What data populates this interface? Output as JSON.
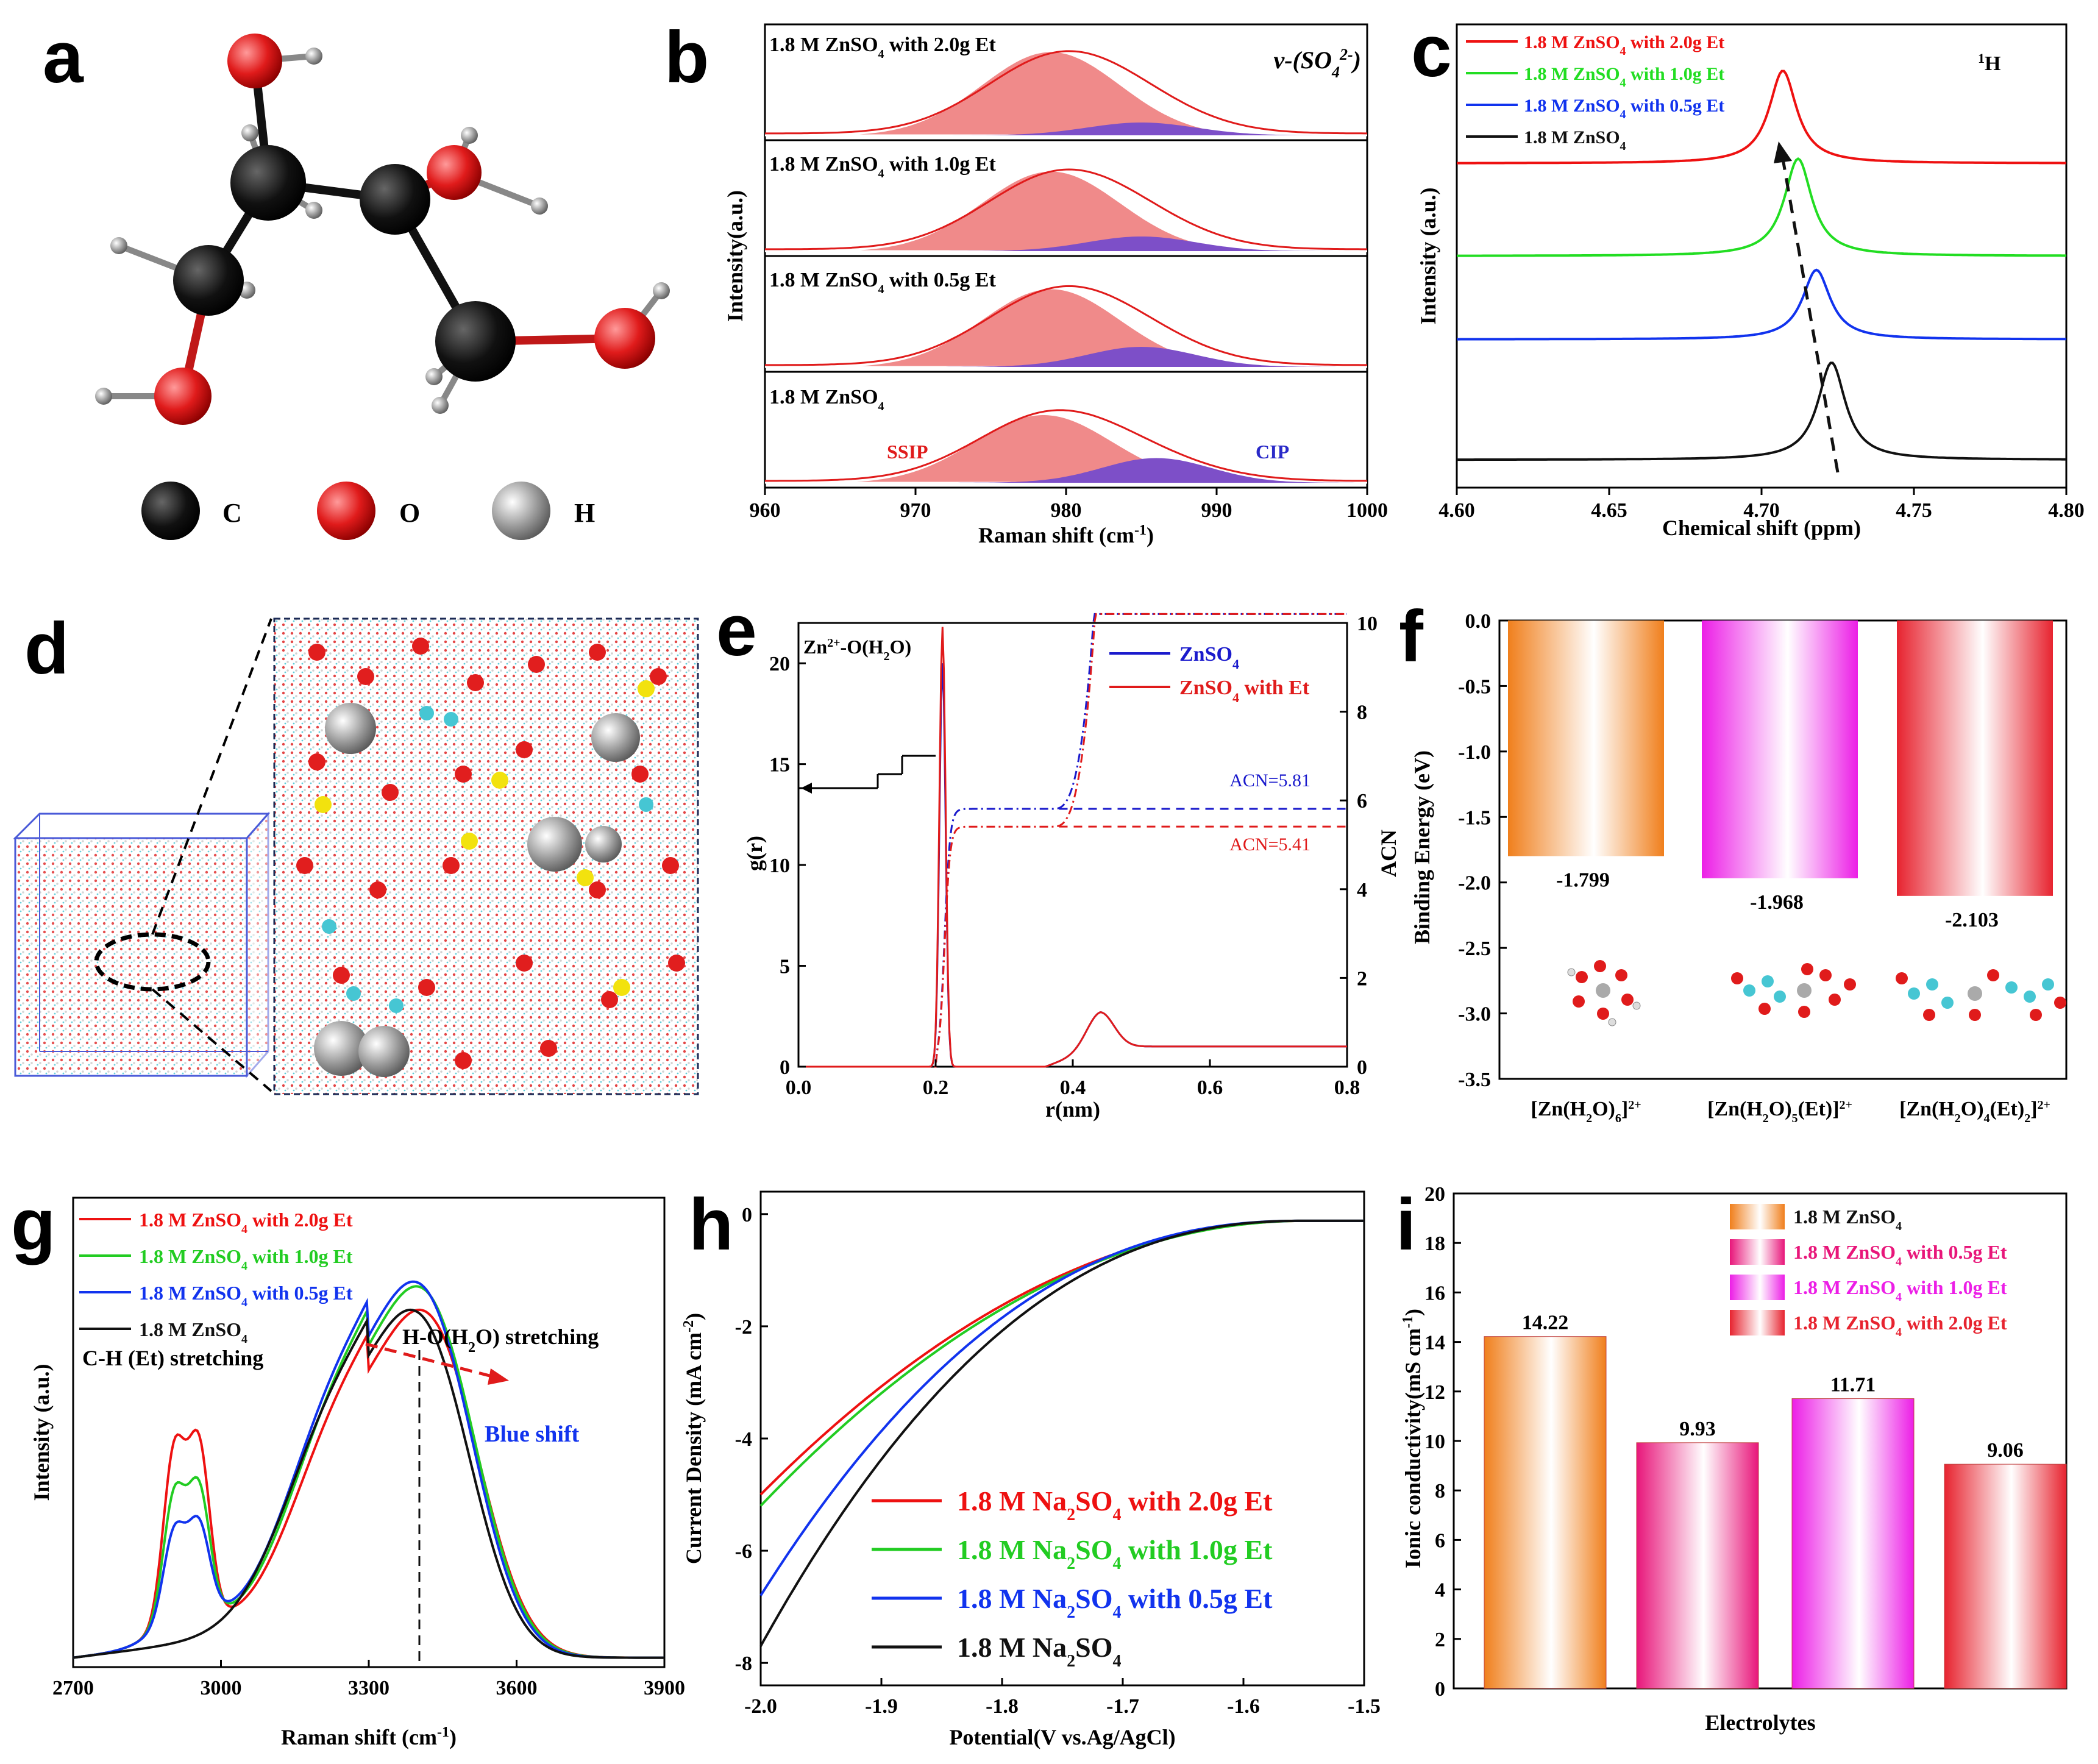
{
  "panels": {
    "a": {
      "label": "a",
      "legend": [
        {
          "symbol": "C",
          "color": "#111111"
        },
        {
          "symbol": "O",
          "color": "#e01b1b"
        },
        {
          "symbol": "H",
          "color": "#9a9a9a"
        }
      ]
    },
    "d": {
      "label": "d"
    }
  },
  "chart_data": [
    {
      "panel": "b",
      "type": "area",
      "title": "v-(SO4 2-)",
      "xlabel": "Raman shift (cm-1)",
      "ylabel": "Intensity(a.u.)",
      "xlim": [
        960,
        1000
      ],
      "xticks": [
        960,
        970,
        980,
        990,
        1000
      ],
      "series": [
        {
          "name": "1.8 M ZnSO4 with 2.0g Et",
          "ssip_center": 979,
          "ssip_height": 0.92,
          "cip_center": 985,
          "cip_height": 0.14,
          "total_height": 0.97
        },
        {
          "name": "1.8 M ZnSO4 with 1.0g Et",
          "ssip_center": 979,
          "ssip_height": 0.88,
          "cip_center": 985,
          "cip_height": 0.16,
          "total_height": 0.94
        },
        {
          "name": "1.8 M ZnSO4 with 0.5g Et",
          "ssip_center": 979,
          "ssip_height": 0.86,
          "cip_center": 985,
          "cip_height": 0.22,
          "total_height": 0.93
        },
        {
          "name": "1.8 M ZnSO4",
          "ssip_center": 978.5,
          "ssip_height": 0.75,
          "cip_center": 986,
          "cip_height": 0.27,
          "total_height": 0.86
        }
      ],
      "annotations": [
        "SSIP",
        "CIP"
      ]
    },
    {
      "panel": "c",
      "type": "line",
      "title": "1H",
      "xlabel": "Chemical shift (ppm)",
      "ylabel": "Intensity (a.u.)",
      "xlim": [
        4.6,
        4.8
      ],
      "xticks": [
        4.6,
        4.65,
        4.7,
        4.75,
        4.8
      ],
      "series": [
        {
          "name": "1.8 M ZnSO4 with 2.0g Et",
          "color": "#ee1111",
          "peak": 4.707,
          "baseline": 0.7,
          "height": 0.2
        },
        {
          "name": "1.8 M ZnSO4 with 1.0g Et",
          "color": "#22dd22",
          "peak": 4.712,
          "baseline": 0.5,
          "height": 0.21
        },
        {
          "name": "1.8 M ZnSO4 with 0.5g Et",
          "color": "#1133ee",
          "peak": 4.718,
          "baseline": 0.32,
          "height": 0.15
        },
        {
          "name": "1.8 M ZnSO4",
          "color": "#111111",
          "peak": 4.723,
          "baseline": 0.06,
          "height": 0.21
        }
      ]
    },
    {
      "panel": "e",
      "type": "line",
      "title": "Zn2+-O(H2O)",
      "xlabel": "r(nm)",
      "ylabel": "g(r)",
      "y2label": "ACN",
      "xlim": [
        0,
        0.8
      ],
      "ylim": [
        0,
        22
      ],
      "y2lim": [
        0,
        10
      ],
      "xticks": [
        0.0,
        0.2,
        0.4,
        0.6,
        0.8
      ],
      "yticks": [
        0,
        5,
        10,
        15,
        20
      ],
      "y2ticks": [
        0,
        2,
        4,
        6,
        8,
        10
      ],
      "series": [
        {
          "name": "ZnSO4",
          "color": "#1a1acc",
          "peak_r": 0.21,
          "peak_g": 20,
          "acn": 5.81
        },
        {
          "name": "ZnSO4 with Et",
          "color": "#e01b1b",
          "peak_r": 0.21,
          "peak_g": 21.8,
          "acn": 5.41
        }
      ],
      "annotations": [
        "ACN=5.81",
        "ACN=5.41"
      ]
    },
    {
      "panel": "f",
      "type": "bar",
      "xlabel": "",
      "ylabel": "Binding Energy (eV)",
      "ylim": [
        -3.5,
        0
      ],
      "yticks": [
        0.0,
        -0.5,
        -1.0,
        -1.5,
        -2.0,
        -2.5,
        -3.0,
        -3.5
      ],
      "categories": [
        "[Zn(H2O)6]2+",
        "[Zn(H2O)5(Et)]2+",
        "[Zn(H2O)4(Et)2]2+"
      ],
      "values": [
        -1.799,
        -1.968,
        -2.103
      ],
      "value_labels": [
        "-1.799",
        "-1.968",
        "-2.103"
      ],
      "colors": [
        "#f07f1c",
        "#ec1ee6",
        "#e7232f"
      ]
    },
    {
      "panel": "g",
      "type": "line",
      "xlabel": "Raman shift (cm-1)",
      "ylabel": "Intensity (a.u.)",
      "xlim": [
        2700,
        3900
      ],
      "xticks": [
        2700,
        3000,
        3300,
        3600,
        3900
      ],
      "series": [
        {
          "name": "1.8 M ZnSO4 with 2.0g Et",
          "color": "#ee1111",
          "ch_peak": 0.64,
          "oh_peak": 0.74
        },
        {
          "name": "1.8 M ZnSO4 with 1.0g Et",
          "color": "#22cc22",
          "ch_peak": 0.47,
          "oh_peak": 0.79
        },
        {
          "name": "1.8 M ZnSO4 with 0.5g Et",
          "color": "#1133ee",
          "ch_peak": 0.33,
          "oh_peak": 0.8
        },
        {
          "name": "1.8 M ZnSO4",
          "color": "#111111",
          "ch_peak": 0.0,
          "oh_peak": 0.74
        }
      ],
      "annotations": [
        "C-H (Et) stretching",
        "H-O(H2O) stretching",
        "Blue shift"
      ]
    },
    {
      "panel": "h",
      "type": "line",
      "xlabel": "Potential(V vs.Ag/AgCl)",
      "ylabel": "Current Density (mA cm-2)",
      "xlim": [
        -2.0,
        -1.5
      ],
      "ylim": [
        -8.4,
        0.4
      ],
      "xticks": [
        -2.0,
        -1.9,
        -1.8,
        -1.7,
        -1.6,
        -1.5
      ],
      "yticks": [
        0,
        -2,
        -4,
        -6,
        -8
      ],
      "series": [
        {
          "name": "1.8 M Na2SO4 with 2.0g Et",
          "color": "#ee1111",
          "at_minus2": -5.0
        },
        {
          "name": "1.8 M Na2SO4 with 1.0g Et",
          "color": "#22cc22",
          "at_minus2": -5.2
        },
        {
          "name": "1.8 M Na2SO4 with 0.5g Et",
          "color": "#1133ee",
          "at_minus2": -6.8
        },
        {
          "name": "1.8 M Na2SO4",
          "color": "#111111",
          "at_minus2": -7.7
        }
      ]
    },
    {
      "panel": "i",
      "type": "bar",
      "xlabel": "Electrolytes",
      "ylabel": "Ionic conductivity(mS cm-1)",
      "ylim": [
        0,
        20
      ],
      "yticks": [
        0,
        2,
        4,
        6,
        8,
        10,
        12,
        14,
        16,
        18,
        20
      ],
      "categories": [
        "1.8 M ZnSO4",
        "1.8 M ZnSO4 with 0.5g Et",
        "1.8 M ZnSO4 with 1.0g Et",
        "1.8 M ZnSO4 with 2.0g Et"
      ],
      "values": [
        14.22,
        9.93,
        11.71,
        9.06
      ],
      "value_labels": [
        "14.22",
        "9.93",
        "11.71",
        "9.06"
      ],
      "colors": [
        "#f07f1c",
        "#e8167a",
        "#ec1ee6",
        "#e7232f"
      ]
    }
  ]
}
